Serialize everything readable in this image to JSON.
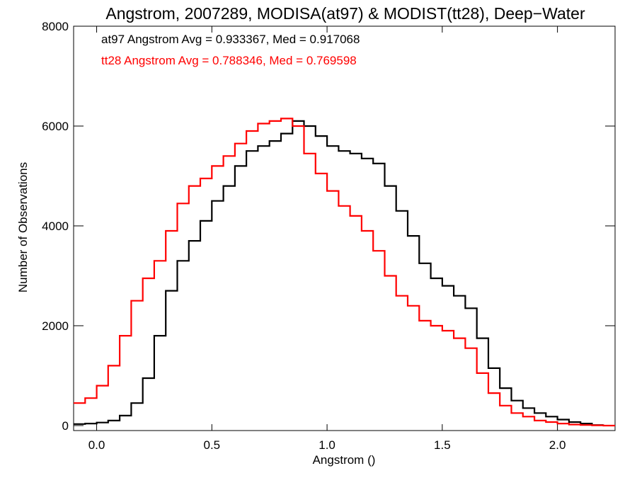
{
  "chart_data": {
    "type": "line",
    "step": true,
    "title": "Angstrom, 2007289, MODISA(at97) & MODIST(tt28), Deep−Water",
    "xlabel": "Angstrom ()",
    "ylabel": "Number of Observations",
    "xlim": [
      -0.1,
      2.25
    ],
    "ylim": [
      -100,
      8000
    ],
    "xticks": [
      0.0,
      0.5,
      1.0,
      1.5,
      2.0
    ],
    "xtick_labels": [
      "0.0",
      "0.5",
      "1.0",
      "1.5",
      "2.0"
    ],
    "yticks": [
      0,
      2000,
      4000,
      6000,
      8000
    ],
    "ytick_labels": [
      "0",
      "2000",
      "4000",
      "6000",
      "8000"
    ],
    "grid": false,
    "annotations": [
      {
        "text": "at97 Angstrom Avg = 0.933367, Med = 0.917068",
        "color": "#000000"
      },
      {
        "text": "tt28 Angstrom Avg = 0.788346, Med = 0.769598",
        "color": "#ff0000"
      }
    ],
    "series": [
      {
        "color": "#000000",
        "x": [
          -0.1,
          -0.05,
          0.0,
          0.05,
          0.1,
          0.15,
          0.2,
          0.25,
          0.3,
          0.35,
          0.4,
          0.45,
          0.5,
          0.55,
          0.6,
          0.65,
          0.7,
          0.75,
          0.8,
          0.85,
          0.9,
          0.95,
          1.0,
          1.05,
          1.1,
          1.15,
          1.2,
          1.25,
          1.3,
          1.35,
          1.4,
          1.45,
          1.5,
          1.55,
          1.6,
          1.65,
          1.7,
          1.75,
          1.8,
          1.85,
          1.9,
          1.95,
          2.0,
          2.05,
          2.1,
          2.15
        ],
        "values": [
          30,
          40,
          60,
          100,
          200,
          450,
          950,
          1800,
          2700,
          3300,
          3700,
          4100,
          4500,
          4800,
          5200,
          5500,
          5600,
          5700,
          5850,
          6100,
          6000,
          5800,
          5600,
          5500,
          5450,
          5350,
          5250,
          4800,
          4300,
          3800,
          3250,
          2950,
          2800,
          2600,
          2350,
          1750,
          1150,
          750,
          500,
          350,
          250,
          180,
          120,
          70,
          40,
          10
        ]
      },
      {
        "color": "#ff0000",
        "x": [
          -0.1,
          -0.05,
          0.0,
          0.05,
          0.1,
          0.15,
          0.2,
          0.25,
          0.3,
          0.35,
          0.4,
          0.45,
          0.5,
          0.55,
          0.6,
          0.65,
          0.7,
          0.75,
          0.8,
          0.85,
          0.9,
          0.95,
          1.0,
          1.05,
          1.1,
          1.15,
          1.2,
          1.25,
          1.3,
          1.35,
          1.4,
          1.45,
          1.5,
          1.55,
          1.6,
          1.65,
          1.7,
          1.75,
          1.8,
          1.85,
          1.9,
          1.95,
          2.0,
          2.05,
          2.1,
          2.15,
          2.2,
          2.25
        ],
        "values": [
          450,
          550,
          800,
          1200,
          1800,
          2500,
          2950,
          3300,
          3900,
          4450,
          4800,
          4950,
          5200,
          5400,
          5650,
          5900,
          6050,
          6100,
          6150,
          6000,
          5450,
          5050,
          4700,
          4400,
          4200,
          3900,
          3500,
          3000,
          2600,
          2400,
          2100,
          2000,
          1900,
          1750,
          1550,
          1050,
          650,
          400,
          250,
          180,
          100,
          70,
          40,
          20,
          10,
          5,
          0,
          0
        ]
      }
    ]
  }
}
